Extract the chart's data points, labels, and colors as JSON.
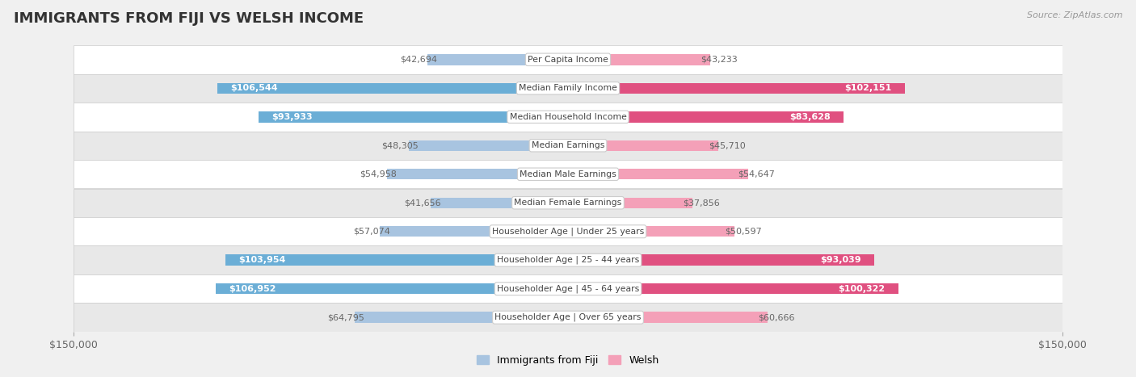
{
  "title": "IMMIGRANTS FROM FIJI VS WELSH INCOME",
  "source": "Source: ZipAtlas.com",
  "categories": [
    "Per Capita Income",
    "Median Family Income",
    "Median Household Income",
    "Median Earnings",
    "Median Male Earnings",
    "Median Female Earnings",
    "Householder Age | Under 25 years",
    "Householder Age | 25 - 44 years",
    "Householder Age | 45 - 64 years",
    "Householder Age | Over 65 years"
  ],
  "fiji_values": [
    42694,
    106544,
    93933,
    48305,
    54958,
    41656,
    57074,
    103954,
    106952,
    64795
  ],
  "welsh_values": [
    43233,
    102151,
    83628,
    45710,
    54647,
    37856,
    50597,
    93039,
    100322,
    60666
  ],
  "fiji_color_small": "#a8c4e0",
  "fiji_color_large": "#6baed6",
  "welsh_color_small": "#f4a0b8",
  "welsh_color_large": "#e05080",
  "bar_height": 0.38,
  "max_val": 150000,
  "bg_color": "#f0f0f0",
  "row_bg_light": "#ffffff",
  "row_bg_dark": "#e8e8e8",
  "text_inside": "#ffffff",
  "text_outside": "#666666",
  "label_box_color": "#ffffff",
  "label_box_edge": "#cccccc",
  "legend_fiji_color": "#a8c4e0",
  "legend_welsh_color": "#f4a0b8",
  "inside_threshold": 70000
}
